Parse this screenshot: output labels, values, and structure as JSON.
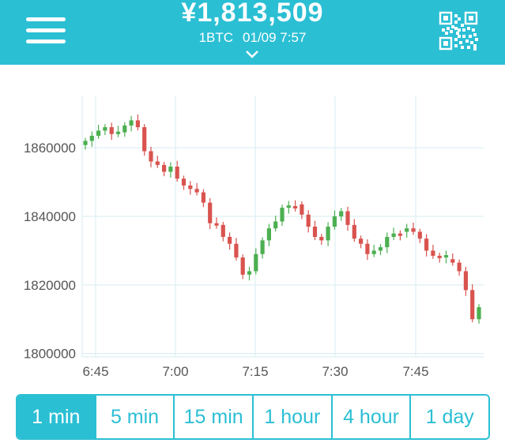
{
  "header": {
    "price": "¥1,813,509",
    "pair": "1BTC",
    "datetime": "01/09 7:57",
    "menu_icon": "hamburger-menu-icon",
    "qr_icon": "qr-code-icon",
    "expand_icon": "chevron-down-icon",
    "accent": "#2bbfd4"
  },
  "tabs": [
    {
      "label": "1 min",
      "active": true
    },
    {
      "label": "5 min",
      "active": false
    },
    {
      "label": "15 min",
      "active": false
    },
    {
      "label": "1 hour",
      "active": false
    },
    {
      "label": "4 hour",
      "active": false
    },
    {
      "label": "1 day",
      "active": false
    }
  ],
  "chart_data": {
    "type": "candlestick",
    "x_ticks": [
      "6:45",
      "7:00",
      "7:15",
      "7:30",
      "7:45"
    ],
    "y_ticks": [
      1800000,
      1820000,
      1840000,
      1860000
    ],
    "ylim": [
      1799000,
      1875000
    ],
    "grid": true,
    "up_color": "#4caf50",
    "down_color": "#d9534f",
    "candles_mid": [
      1862000,
      1863500,
      1865000,
      1866000,
      1864000,
      1864500,
      1866500,
      1868000,
      1866000,
      1859000,
      1856000,
      1855000,
      1853000,
      1854500,
      1851000,
      1849000,
      1848000,
      1847000,
      1844000,
      1838000,
      1837500,
      1834000,
      1832000,
      1828000,
      1823000,
      1824000,
      1829000,
      1833000,
      1836500,
      1838500,
      1842500,
      1843000,
      1843500,
      1840500,
      1837000,
      1834000,
      1833000,
      1837000,
      1840000,
      1841500,
      1837500,
      1833500,
      1832000,
      1829000,
      1830000,
      1831000,
      1834000,
      1835000,
      1835500,
      1836500,
      1835500,
      1833500,
      1830000,
      1828500,
      1828000,
      1827500,
      1826500,
      1824000,
      1818500,
      1810000,
      1813500
    ]
  }
}
